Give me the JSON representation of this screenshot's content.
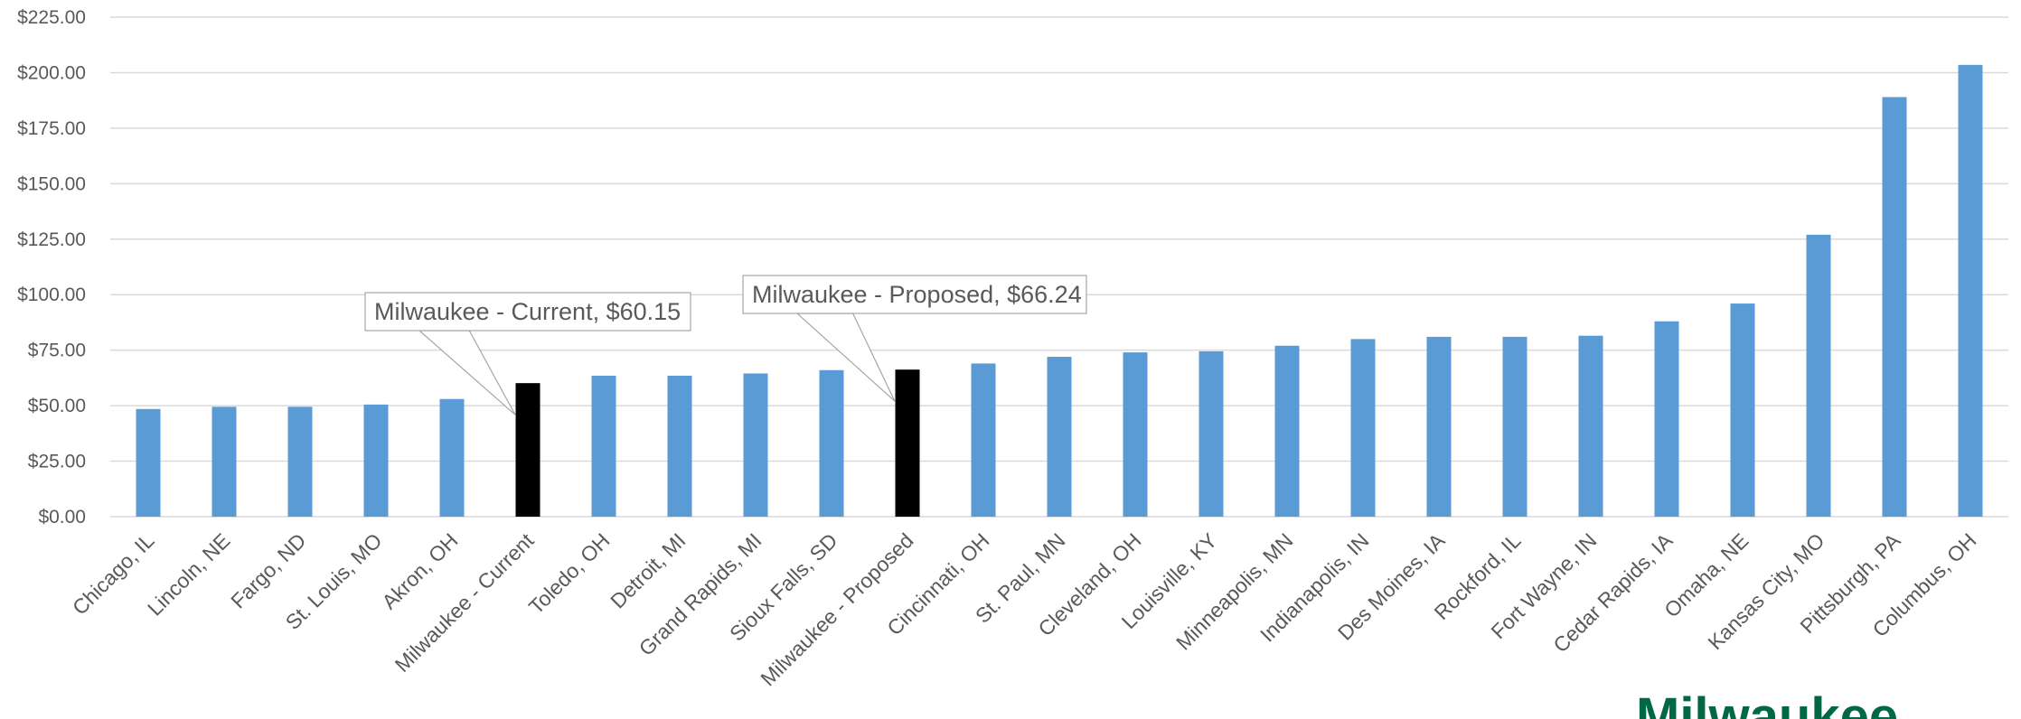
{
  "chart_data": {
    "type": "bar",
    "categories": [
      "Chicago, IL",
      "Lincoln, NE",
      "Fargo, ND",
      "St. Louis, MO",
      "Akron, OH",
      "Milwaukee - Current",
      "Toledo, OH",
      "Detroit, MI",
      "Grand Rapids, MI",
      "Sioux Falls, SD",
      "Milwaukee - Proposed",
      "Cincinnati, OH",
      "St. Paul, MN",
      "Cleveland, OH",
      "Louisville, KY",
      "Minneapolis, MN",
      "Indianapolis, IN",
      "Des Moines, IA",
      "Rockford, IL",
      "Fort Wayne, IN",
      "Cedar Rapids, IA",
      "Omaha, NE",
      "Kansas City, MO",
      "Pittsburgh, PA",
      "Columbus, OH"
    ],
    "values": [
      48.5,
      49.5,
      49.5,
      50.5,
      53.0,
      60.15,
      63.5,
      63.5,
      64.5,
      66.0,
      66.24,
      69.0,
      72.0,
      74.0,
      74.5,
      77.0,
      80.0,
      81.0,
      81.0,
      81.5,
      88.0,
      96.0,
      127.0,
      189.0,
      203.5
    ],
    "highlight_indices": [
      5,
      10
    ],
    "ylim": [
      0,
      225
    ],
    "ytick_labels": [
      "$0.00",
      "$25.00",
      "$50.00",
      "$75.00",
      "$100.00",
      "$125.00",
      "$150.00",
      "$175.00",
      "$200.00",
      "$225.00"
    ],
    "ytick_values": [
      0,
      25,
      50,
      75,
      100,
      125,
      150,
      175,
      200,
      225
    ],
    "grid": true,
    "title": "",
    "xlabel": "",
    "ylabel": "",
    "colors": {
      "bar": "#5B9BD5",
      "highlight": "#000000",
      "grid": "#D9D9D9",
      "text": "#595959",
      "logo": "#006747"
    },
    "callouts": [
      {
        "text": "Milwaukee - Current, $60.15",
        "target_index": 5
      },
      {
        "text": "Milwaukee - Proposed, $66.24",
        "target_index": 10
      }
    ]
  },
  "logo": {
    "text": "Milwaukee"
  }
}
